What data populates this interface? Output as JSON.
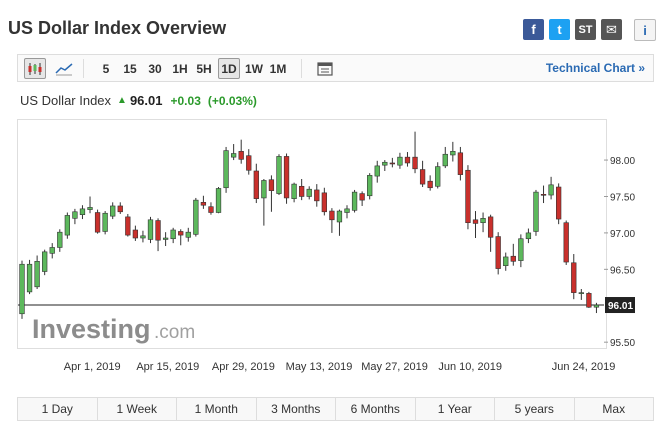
{
  "page": {
    "title": "US Dollar Index Overview"
  },
  "share": [
    {
      "icon": "facebook-icon",
      "label": "f"
    },
    {
      "icon": "twitter-icon",
      "label": "t"
    },
    {
      "icon": "stocktwits-icon",
      "label": "ST"
    },
    {
      "icon": "email-icon",
      "label": "✉"
    }
  ],
  "info_label": "i",
  "toolbar": {
    "intervals": [
      "5",
      "15",
      "30",
      "1H",
      "5H",
      "1D",
      "1W",
      "1M"
    ],
    "active_interval": "1D",
    "technical_chart_label": "Technical Chart »"
  },
  "quote": {
    "name": "US Dollar Index",
    "price": "96.01",
    "change": "+0.03",
    "change_pct": "(+0.03%)",
    "direction": "up"
  },
  "colors": {
    "up": "#5cb85c",
    "down": "#c9302c",
    "positive_text": "#2b9a2b",
    "link": "#2a6ab3"
  },
  "chart_data": {
    "type": "candlestick",
    "y_ticks": [
      "98.00",
      "97.50",
      "97.00",
      "96.50",
      "96.01",
      "95.50"
    ],
    "ylim": [
      95.42,
      98.55
    ],
    "last_price": 96.01,
    "x_labels": [
      "Apr 1, 2019",
      "Apr 15, 2019",
      "Apr 29, 2019",
      "May 13, 2019",
      "May 27, 2019",
      "Jun 10, 2019",
      "Jun 24, 2019"
    ],
    "watermark": {
      "brand": "Investing",
      "suffix": ".com"
    },
    "candles": [
      [
        95.89,
        96.57,
        95.82,
        96.62
      ],
      [
        96.19,
        96.57,
        96.16,
        96.63
      ],
      [
        96.26,
        96.61,
        96.23,
        96.69
      ],
      [
        96.47,
        96.74,
        96.42,
        96.77
      ],
      [
        96.72,
        96.8,
        96.65,
        96.86
      ],
      [
        96.8,
        97.01,
        96.74,
        97.05
      ],
      [
        96.97,
        97.24,
        96.92,
        97.28
      ],
      [
        97.2,
        97.29,
        97.12,
        97.33
      ],
      [
        97.25,
        97.33,
        97.19,
        97.38
      ],
      [
        97.32,
        97.35,
        97.27,
        97.5
      ],
      [
        97.28,
        97.01,
        96.99,
        97.32
      ],
      [
        97.02,
        97.27,
        96.98,
        97.3
      ],
      [
        97.23,
        97.37,
        97.19,
        97.42
      ],
      [
        97.37,
        97.29,
        97.26,
        97.42
      ],
      [
        97.22,
        96.97,
        96.95,
        97.26
      ],
      [
        97.04,
        96.93,
        96.89,
        97.1
      ],
      [
        96.93,
        96.96,
        96.87,
        97.03
      ],
      [
        96.91,
        97.18,
        96.86,
        97.22
      ],
      [
        97.17,
        96.9,
        96.75,
        97.2
      ],
      [
        96.91,
        96.93,
        96.82,
        97.01
      ],
      [
        96.92,
        97.04,
        96.86,
        97.07
      ],
      [
        97.02,
        96.97,
        96.83,
        97.05
      ],
      [
        96.94,
        97.01,
        96.88,
        97.07
      ],
      [
        96.98,
        97.45,
        96.95,
        97.48
      ],
      [
        97.42,
        97.38,
        97.33,
        97.51
      ],
      [
        97.36,
        97.28,
        97.25,
        97.42
      ],
      [
        97.28,
        97.61,
        97.27,
        97.63
      ],
      [
        97.62,
        98.13,
        97.55,
        98.18
      ],
      [
        98.04,
        98.09,
        98.0,
        98.22
      ],
      [
        98.12,
        98.01,
        97.95,
        98.28
      ],
      [
        98.06,
        97.86,
        97.8,
        98.15
      ],
      [
        97.85,
        97.47,
        97.41,
        97.95
      ],
      [
        97.48,
        97.72,
        97.1,
        97.74
      ],
      [
        97.73,
        97.58,
        97.29,
        97.79
      ],
      [
        97.54,
        98.05,
        97.52,
        98.08
      ],
      [
        98.05,
        97.48,
        97.4,
        98.09
      ],
      [
        97.47,
        97.67,
        97.42,
        97.69
      ],
      [
        97.64,
        97.5,
        97.45,
        97.74
      ],
      [
        97.5,
        97.6,
        97.46,
        97.64
      ],
      [
        97.59,
        97.44,
        97.36,
        97.67
      ],
      [
        97.55,
        97.29,
        97.24,
        97.62
      ],
      [
        97.3,
        97.18,
        97.0,
        97.34
      ],
      [
        97.15,
        97.3,
        96.96,
        97.32
      ],
      [
        97.28,
        97.33,
        97.2,
        97.38
      ],
      [
        97.31,
        97.56,
        97.28,
        97.59
      ],
      [
        97.54,
        97.45,
        97.37,
        97.57
      ],
      [
        97.51,
        97.79,
        97.46,
        97.82
      ],
      [
        97.78,
        97.92,
        97.69,
        97.99
      ],
      [
        97.93,
        97.97,
        97.85,
        98.0
      ],
      [
        97.96,
        97.95,
        97.9,
        98.03
      ],
      [
        97.93,
        98.04,
        97.88,
        98.1
      ],
      [
        98.04,
        97.96,
        97.91,
        98.11
      ],
      [
        98.04,
        97.88,
        97.82,
        98.39
      ],
      [
        97.87,
        97.67,
        97.63,
        97.99
      ],
      [
        97.71,
        97.62,
        97.58,
        97.79
      ],
      [
        97.64,
        97.91,
        97.61,
        97.97
      ],
      [
        97.92,
        98.08,
        97.89,
        98.18
      ],
      [
        98.07,
        98.12,
        97.98,
        98.25
      ],
      [
        98.1,
        97.8,
        97.72,
        98.18
      ],
      [
        97.86,
        97.14,
        97.05,
        97.93
      ],
      [
        97.18,
        97.13,
        96.93,
        97.3
      ],
      [
        97.14,
        97.2,
        97.01,
        97.28
      ],
      [
        97.22,
        96.94,
        96.74,
        97.25
      ],
      [
        96.95,
        96.51,
        96.43,
        97.01
      ],
      [
        96.55,
        96.67,
        96.48,
        96.73
      ],
      [
        96.68,
        96.61,
        96.55,
        96.85
      ],
      [
        96.62,
        96.92,
        96.53,
        96.98
      ],
      [
        96.92,
        97.0,
        96.86,
        97.06
      ],
      [
        97.02,
        97.56,
        96.96,
        97.59
      ],
      [
        97.53,
        97.52,
        97.41,
        97.65
      ],
      [
        97.52,
        97.66,
        97.46,
        97.77
      ],
      [
        97.63,
        97.19,
        97.12,
        97.68
      ],
      [
        97.14,
        96.6,
        96.56,
        97.17
      ],
      [
        96.59,
        96.18,
        96.09,
        96.71
      ],
      [
        96.17,
        96.18,
        96.08,
        96.23
      ],
      [
        96.17,
        95.98,
        95.97,
        96.19
      ],
      [
        95.98,
        96.01,
        95.9,
        96.04
      ]
    ]
  },
  "ranges": [
    "1 Day",
    "1 Week",
    "1 Month",
    "3 Months",
    "6 Months",
    "1 Year",
    "5 years",
    "Max"
  ]
}
